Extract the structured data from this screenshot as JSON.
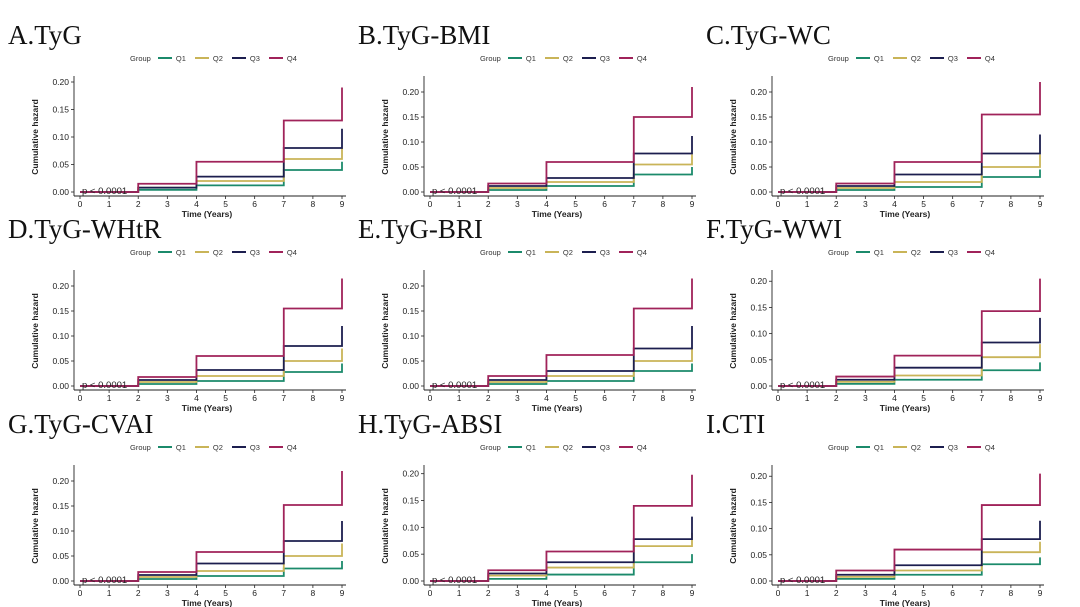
{
  "chart_data": [
    {
      "type": "line",
      "step": true,
      "label": "A.TyG",
      "xlabel": "Time (Years)",
      "ylabel": "Cumulative hazard",
      "pvalue": "p < 0.0001",
      "legend_title": "Group",
      "legend": [
        "Q1",
        "Q2",
        "Q3",
        "Q4"
      ],
      "x_ticks": [
        "0",
        "1",
        "2",
        "3",
        "4",
        "5",
        "6",
        "7",
        "8",
        "9"
      ],
      "y_ticks": [
        "0.00",
        "0.05",
        "0.10",
        "0.15",
        "0.20"
      ],
      "xlim": [
        0,
        9
      ],
      "ylim": [
        0,
        0.2
      ],
      "series": [
        {
          "name": "Q1",
          "x": [
            0,
            2,
            4,
            7,
            9,
            9
          ],
          "y": [
            0,
            0.004,
            0.012,
            0.04,
            0.04,
            0.055
          ]
        },
        {
          "name": "Q2",
          "x": [
            0,
            2,
            4,
            7,
            9,
            9
          ],
          "y": [
            0,
            0.008,
            0.02,
            0.06,
            0.06,
            0.08
          ]
        },
        {
          "name": "Q3",
          "x": [
            0,
            2,
            4,
            7,
            9,
            9
          ],
          "y": [
            0,
            0.008,
            0.028,
            0.08,
            0.08,
            0.115
          ]
        },
        {
          "name": "Q4",
          "x": [
            0,
            2,
            4,
            7,
            9,
            9
          ],
          "y": [
            0,
            0.015,
            0.055,
            0.13,
            0.13,
            0.19
          ]
        }
      ]
    },
    {
      "type": "line",
      "step": true,
      "label": "B.TyG-BMI",
      "xlabel": "Time (Years)",
      "ylabel": "Cumulative hazard",
      "pvalue": "p < 0.0001",
      "legend_title": "Group",
      "legend": [
        "Q1",
        "Q2",
        "Q3",
        "Q4"
      ],
      "x_ticks": [
        "0",
        "1",
        "2",
        "3",
        "4",
        "5",
        "6",
        "7",
        "8",
        "9"
      ],
      "y_ticks": [
        "0.00",
        "0.05",
        "0.10",
        "0.15",
        "0.20"
      ],
      "xlim": [
        0,
        9
      ],
      "ylim": [
        0,
        0.22
      ],
      "series": [
        {
          "name": "Q1",
          "x": [
            0,
            2,
            4,
            7,
            9,
            9
          ],
          "y": [
            0,
            0.004,
            0.012,
            0.035,
            0.035,
            0.05
          ]
        },
        {
          "name": "Q2",
          "x": [
            0,
            2,
            4,
            7,
            9,
            9
          ],
          "y": [
            0,
            0.008,
            0.02,
            0.055,
            0.055,
            0.075
          ]
        },
        {
          "name": "Q3",
          "x": [
            0,
            2,
            4,
            7,
            9,
            9
          ],
          "y": [
            0,
            0.012,
            0.028,
            0.077,
            0.077,
            0.112
          ]
        },
        {
          "name": "Q4",
          "x": [
            0,
            2,
            4,
            7,
            9,
            9
          ],
          "y": [
            0,
            0.017,
            0.06,
            0.15,
            0.15,
            0.21
          ]
        }
      ]
    },
    {
      "type": "line",
      "step": true,
      "label": "C.TyG-WC",
      "xlabel": "Time (Years)",
      "ylabel": "Cumulative hazard",
      "pvalue": "p < 0.0001",
      "legend_title": "Group",
      "legend": [
        "Q1",
        "Q2",
        "Q3",
        "Q4"
      ],
      "x_ticks": [
        "0",
        "1",
        "2",
        "3",
        "4",
        "5",
        "6",
        "7",
        "8",
        "9"
      ],
      "y_ticks": [
        "0.00",
        "0.05",
        "0.10",
        "0.15",
        "0.20"
      ],
      "xlim": [
        0,
        9
      ],
      "ylim": [
        0,
        0.22
      ],
      "series": [
        {
          "name": "Q1",
          "x": [
            0,
            2,
            4,
            7,
            9,
            9
          ],
          "y": [
            0,
            0.004,
            0.01,
            0.03,
            0.03,
            0.045
          ]
        },
        {
          "name": "Q2",
          "x": [
            0,
            2,
            4,
            7,
            9,
            9
          ],
          "y": [
            0,
            0.008,
            0.02,
            0.05,
            0.05,
            0.075
          ]
        },
        {
          "name": "Q3",
          "x": [
            0,
            2,
            4,
            7,
            9,
            9
          ],
          "y": [
            0,
            0.012,
            0.035,
            0.077,
            0.077,
            0.115
          ]
        },
        {
          "name": "Q4",
          "x": [
            0,
            2,
            4,
            7,
            9,
            9
          ],
          "y": [
            0,
            0.017,
            0.06,
            0.155,
            0.155,
            0.22
          ]
        }
      ]
    },
    {
      "type": "line",
      "step": true,
      "label": "D.TyG-WHtR",
      "xlabel": "Time (Years)",
      "ylabel": "Cumulative hazard",
      "pvalue": "p < 0.0001",
      "legend_title": "Group",
      "legend": [
        "Q1",
        "Q2",
        "Q3",
        "Q4"
      ],
      "x_ticks": [
        "0",
        "1",
        "2",
        "3",
        "4",
        "5",
        "6",
        "7",
        "8",
        "9"
      ],
      "y_ticks": [
        "0.00",
        "0.05",
        "0.10",
        "0.15",
        "0.20"
      ],
      "xlim": [
        0,
        9
      ],
      "ylim": [
        0,
        0.22
      ],
      "series": [
        {
          "name": "Q1",
          "x": [
            0,
            2,
            4,
            7,
            9,
            9
          ],
          "y": [
            0,
            0.004,
            0.01,
            0.028,
            0.028,
            0.045
          ]
        },
        {
          "name": "Q2",
          "x": [
            0,
            2,
            4,
            7,
            9,
            9
          ],
          "y": [
            0,
            0.008,
            0.02,
            0.05,
            0.05,
            0.075
          ]
        },
        {
          "name": "Q3",
          "x": [
            0,
            2,
            4,
            7,
            9,
            9
          ],
          "y": [
            0,
            0.012,
            0.032,
            0.08,
            0.08,
            0.12
          ]
        },
        {
          "name": "Q4",
          "x": [
            0,
            2,
            4,
            7,
            9,
            9
          ],
          "y": [
            0,
            0.018,
            0.06,
            0.155,
            0.155,
            0.215
          ]
        }
      ]
    },
    {
      "type": "line",
      "step": true,
      "label": "E.TyG-BRI",
      "xlabel": "Time (Years)",
      "ylabel": "Cumulative hazard",
      "pvalue": "p < 0.0001",
      "legend_title": "Group",
      "legend": [
        "Q1",
        "Q2",
        "Q3",
        "Q4"
      ],
      "x_ticks": [
        "0",
        "1",
        "2",
        "3",
        "4",
        "5",
        "6",
        "7",
        "8",
        "9"
      ],
      "y_ticks": [
        "0.00",
        "0.05",
        "0.10",
        "0.15",
        "0.20"
      ],
      "xlim": [
        0,
        9
      ],
      "ylim": [
        0,
        0.22
      ],
      "series": [
        {
          "name": "Q1",
          "x": [
            0,
            2,
            4,
            7,
            9,
            9
          ],
          "y": [
            0,
            0.004,
            0.01,
            0.03,
            0.03,
            0.045
          ]
        },
        {
          "name": "Q2",
          "x": [
            0,
            2,
            4,
            7,
            9,
            9
          ],
          "y": [
            0,
            0.008,
            0.02,
            0.05,
            0.05,
            0.075
          ]
        },
        {
          "name": "Q3",
          "x": [
            0,
            2,
            4,
            7,
            9,
            9
          ],
          "y": [
            0,
            0.012,
            0.03,
            0.075,
            0.075,
            0.12
          ]
        },
        {
          "name": "Q4",
          "x": [
            0,
            2,
            4,
            7,
            9,
            9
          ],
          "y": [
            0,
            0.02,
            0.062,
            0.155,
            0.155,
            0.215
          ]
        }
      ]
    },
    {
      "type": "line",
      "step": true,
      "label": "F.TyG-WWI",
      "xlabel": "Time (Years)",
      "ylabel": "Cumulative hazard",
      "pvalue": "p < 0.0001",
      "legend_title": "Group",
      "legend": [
        "Q1",
        "Q2",
        "Q3",
        "Q4"
      ],
      "x_ticks": [
        "0",
        "1",
        "2",
        "3",
        "4",
        "5",
        "6",
        "7",
        "8",
        "9"
      ],
      "y_ticks": [
        "0.00",
        "0.05",
        "0.10",
        "0.15",
        "0.20"
      ],
      "xlim": [
        0,
        9
      ],
      "ylim": [
        0,
        0.21
      ],
      "series": [
        {
          "name": "Q1",
          "x": [
            0,
            2,
            4,
            7,
            9,
            9
          ],
          "y": [
            0,
            0.004,
            0.012,
            0.03,
            0.03,
            0.045
          ]
        },
        {
          "name": "Q2",
          "x": [
            0,
            2,
            4,
            7,
            9,
            9
          ],
          "y": [
            0,
            0.008,
            0.02,
            0.055,
            0.055,
            0.08
          ]
        },
        {
          "name": "Q3",
          "x": [
            0,
            2,
            4,
            7,
            9,
            9
          ],
          "y": [
            0,
            0.012,
            0.035,
            0.083,
            0.083,
            0.13
          ]
        },
        {
          "name": "Q4",
          "x": [
            0,
            2,
            4,
            7,
            9,
            9
          ],
          "y": [
            0,
            0.018,
            0.058,
            0.143,
            0.143,
            0.205
          ]
        }
      ]
    },
    {
      "type": "line",
      "step": true,
      "label": "G.TyG-CVAI",
      "xlabel": "Time (Years)",
      "ylabel": "Cumulative hazard",
      "pvalue": "p < 0.0001",
      "legend_title": "Group",
      "legend": [
        "Q1",
        "Q2",
        "Q3",
        "Q4"
      ],
      "x_ticks": [
        "0",
        "1",
        "2",
        "3",
        "4",
        "5",
        "6",
        "7",
        "8",
        "9"
      ],
      "y_ticks": [
        "0.00",
        "0.05",
        "0.10",
        "0.15",
        "0.20"
      ],
      "xlim": [
        0,
        9
      ],
      "ylim": [
        0,
        0.22
      ],
      "series": [
        {
          "name": "Q1",
          "x": [
            0,
            2,
            4,
            7,
            9,
            9
          ],
          "y": [
            0,
            0.004,
            0.01,
            0.025,
            0.025,
            0.04
          ]
        },
        {
          "name": "Q2",
          "x": [
            0,
            2,
            4,
            7,
            9,
            9
          ],
          "y": [
            0,
            0.008,
            0.02,
            0.05,
            0.05,
            0.075
          ]
        },
        {
          "name": "Q3",
          "x": [
            0,
            2,
            4,
            7,
            9,
            9
          ],
          "y": [
            0,
            0.012,
            0.035,
            0.08,
            0.08,
            0.12
          ]
        },
        {
          "name": "Q4",
          "x": [
            0,
            2,
            4,
            7,
            9,
            9
          ],
          "y": [
            0,
            0.018,
            0.058,
            0.152,
            0.152,
            0.22
          ]
        }
      ]
    },
    {
      "type": "line",
      "step": true,
      "label": "H.TyG-ABSI",
      "xlabel": "Time (Years)",
      "ylabel": "Cumulative hazard",
      "pvalue": "p < 0.0001",
      "legend_title": "Group",
      "legend": [
        "Q1",
        "Q2",
        "Q3",
        "Q4"
      ],
      "x_ticks": [
        "0",
        "1",
        "2",
        "3",
        "4",
        "5",
        "6",
        "7",
        "8",
        "9"
      ],
      "y_ticks": [
        "0.00",
        "0.05",
        "0.10",
        "0.15",
        "0.20"
      ],
      "xlim": [
        0,
        9
      ],
      "ylim": [
        0,
        0.205
      ],
      "series": [
        {
          "name": "Q1",
          "x": [
            0,
            2,
            4,
            7,
            9,
            9
          ],
          "y": [
            0,
            0.004,
            0.012,
            0.035,
            0.035,
            0.05
          ]
        },
        {
          "name": "Q2",
          "x": [
            0,
            2,
            4,
            7,
            9,
            9
          ],
          "y": [
            0,
            0.01,
            0.025,
            0.065,
            0.065,
            0.09
          ]
        },
        {
          "name": "Q3",
          "x": [
            0,
            2,
            4,
            7,
            9,
            9
          ],
          "y": [
            0,
            0.014,
            0.035,
            0.078,
            0.078,
            0.12
          ]
        },
        {
          "name": "Q4",
          "x": [
            0,
            2,
            4,
            7,
            9,
            9
          ],
          "y": [
            0,
            0.02,
            0.055,
            0.14,
            0.14,
            0.198
          ]
        }
      ]
    },
    {
      "type": "line",
      "step": true,
      "label": "I.CTI",
      "xlabel": "Time (Years)",
      "ylabel": "Cumulative hazard",
      "pvalue": "p < 0.0001",
      "legend_title": "Group",
      "legend": [
        "Q1",
        "Q2",
        "Q3",
        "Q4"
      ],
      "x_ticks": [
        "0",
        "1",
        "2",
        "3",
        "4",
        "5",
        "6",
        "7",
        "8",
        "9"
      ],
      "y_ticks": [
        "0.00",
        "0.05",
        "0.10",
        "0.15",
        "0.20"
      ],
      "xlim": [
        0,
        9
      ],
      "ylim": [
        0,
        0.21
      ],
      "series": [
        {
          "name": "Q1",
          "x": [
            0,
            2,
            4,
            7,
            9,
            9
          ],
          "y": [
            0,
            0.004,
            0.012,
            0.032,
            0.032,
            0.045
          ]
        },
        {
          "name": "Q2",
          "x": [
            0,
            2,
            4,
            7,
            9,
            9
          ],
          "y": [
            0,
            0.008,
            0.02,
            0.055,
            0.055,
            0.075
          ]
        },
        {
          "name": "Q3",
          "x": [
            0,
            2,
            4,
            7,
            9,
            9
          ],
          "y": [
            0,
            0.012,
            0.03,
            0.08,
            0.08,
            0.115
          ]
        },
        {
          "name": "Q4",
          "x": [
            0,
            2,
            4,
            7,
            9,
            9
          ],
          "y": [
            0,
            0.02,
            0.06,
            0.145,
            0.145,
            0.205
          ]
        }
      ]
    }
  ],
  "colors": {
    "Q1": "#1b8a6b",
    "Q2": "#c9b458",
    "Q3": "#1c1e4f",
    "Q4": "#a0235a"
  }
}
